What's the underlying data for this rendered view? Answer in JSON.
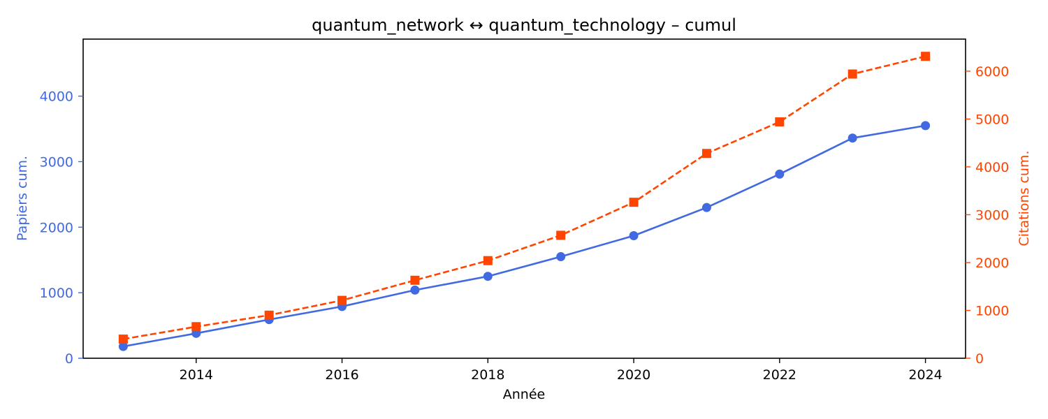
{
  "chart_data": {
    "type": "line",
    "title": "quantum_network  ↔  quantum_technology  –  cumul",
    "xlabel": "Année",
    "ylabel_left": "Papiers cum.",
    "ylabel_right": "Citations cum.",
    "x": [
      2013,
      2014,
      2015,
      2016,
      2017,
      2018,
      2019,
      2020,
      2021,
      2022,
      2023,
      2024
    ],
    "xlim": [
      2012.45,
      2024.55
    ],
    "ylim_left": [
      0,
      4870
    ],
    "ylim_right": [
      0,
      6670
    ],
    "x_ticks": [
      2014,
      2016,
      2018,
      2020,
      2022,
      2024
    ],
    "y_ticks_left": [
      0,
      1000,
      2000,
      3000,
      4000
    ],
    "y_ticks_right": [
      0,
      1000,
      2000,
      3000,
      4000,
      5000,
      6000
    ],
    "grid": false,
    "legend": "none",
    "series": [
      {
        "axis": "left",
        "color": "#4169e1",
        "style": "solid",
        "marker": "circle",
        "values": [
          180,
          380,
          590,
          790,
          1040,
          1250,
          1550,
          1870,
          2300,
          2810,
          3360,
          3550
        ]
      },
      {
        "axis": "right",
        "color": "#ff4500",
        "style": "dashed",
        "marker": "square",
        "values": [
          400,
          660,
          900,
          1210,
          1630,
          2040,
          2570,
          3260,
          4280,
          4940,
          5940,
          6310
        ]
      }
    ]
  }
}
